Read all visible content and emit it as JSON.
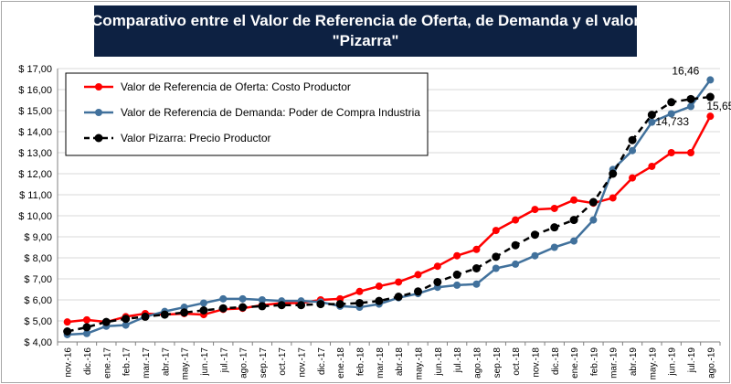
{
  "chart_data": {
    "type": "line",
    "title": "Comparativo entre el Valor de Referencia de Oferta, de Demanda y el valor",
    "title_line2": "\"Pizarra\"",
    "xlabel": "",
    "ylabel": "",
    "ylim": [
      4,
      17
    ],
    "yticks": [
      "$ 4,00",
      "$ 5,00",
      "$ 6,00",
      "$ 7,00",
      "$ 8,00",
      "$ 9,00",
      "$ 10,00",
      "$ 11,00",
      "$ 12,00",
      "$ 13,00",
      "$ 14,00",
      "$ 15,00",
      "$ 16,00",
      "$ 17,00"
    ],
    "grid": true,
    "legend_position": "top-left",
    "categories": [
      "nov.-16",
      "dic.-16",
      "ene.-17",
      "feb.-17",
      "mar.-17",
      "abr.-17",
      "may.-17",
      "jun.-17",
      "jul.-17",
      "ago.-17",
      "sep.-17",
      "oct.-17",
      "nov.-17",
      "dic.-17",
      "ene.-18",
      "feb.-18",
      "mar.-18",
      "abr.-18",
      "may.-18",
      "jun.-18",
      "jul.-18",
      "ago.-18",
      "sep.-18",
      "oct.-18",
      "nov.-18",
      "dic.-18",
      "ene.-19",
      "feb.-19",
      "mar.-19",
      "abr.-19",
      "may.-19",
      "jun.-19",
      "jul.-19",
      "ago.-19"
    ],
    "series": [
      {
        "name": "Valor de Referencia de Oferta: Costo Productor",
        "color": "#ff0000",
        "dashed": false,
        "values": [
          4.95,
          5.05,
          4.95,
          5.2,
          5.35,
          5.3,
          5.35,
          5.3,
          5.55,
          5.6,
          5.75,
          5.85,
          5.85,
          6.0,
          6.05,
          6.4,
          6.65,
          6.85,
          7.2,
          7.6,
          8.1,
          8.4,
          9.3,
          9.8,
          10.3,
          10.35,
          10.75,
          10.6,
          10.85,
          11.8,
          12.35,
          13.0,
          13.0,
          14.733
        ]
      },
      {
        "name": "Valor de Referencia de Demanda: Poder de Compra Industria",
        "color": "#41719c",
        "dashed": false,
        "values": [
          4.35,
          4.4,
          4.75,
          4.8,
          5.2,
          5.45,
          5.65,
          5.85,
          6.05,
          6.05,
          6.0,
          5.95,
          5.95,
          5.9,
          5.7,
          5.65,
          5.8,
          6.1,
          6.3,
          6.6,
          6.7,
          6.75,
          7.5,
          7.7,
          8.1,
          8.5,
          8.8,
          9.8,
          12.2,
          13.1,
          14.45,
          14.85,
          15.2,
          16.46
        ]
      },
      {
        "name": "Valor Pizarra: Precio Productor",
        "color": "#000000",
        "dashed": true,
        "values": [
          4.5,
          4.7,
          4.95,
          5.1,
          5.2,
          5.3,
          5.4,
          5.5,
          5.6,
          5.65,
          5.7,
          5.75,
          5.75,
          5.8,
          5.8,
          5.85,
          5.95,
          6.15,
          6.4,
          6.85,
          7.2,
          7.5,
          8.05,
          8.6,
          9.1,
          9.45,
          9.8,
          10.65,
          12.0,
          13.6,
          14.8,
          15.4,
          15.55,
          15.65
        ]
      }
    ],
    "annotations": [
      {
        "text": "16,46",
        "series": 1,
        "color": "#41719c"
      },
      {
        "text": "15,65",
        "series": 2,
        "color": "#000000"
      },
      {
        "text": "14,733",
        "series": 0,
        "color": "#ff0000"
      }
    ]
  }
}
